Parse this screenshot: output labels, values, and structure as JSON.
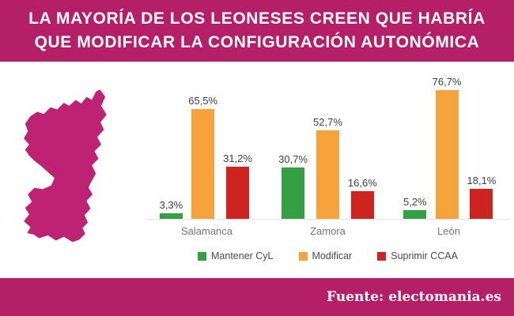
{
  "title": {
    "line1": "LA MAYORÍA DE LOS LEONESES CREEN QUE HABRÍA",
    "line2": "QUE MODIFICAR LA CONFIGURACIÓN AUTONÓMICA"
  },
  "map": {
    "icon": "leon-region-silhouette",
    "fill": "#BE2272"
  },
  "footer": {
    "source_label": "Fuente: electomania.es"
  },
  "colors": {
    "banner_background": "#B51F68",
    "page_background": "#FFFFFF",
    "axis_line": "#E3E3E3",
    "value_label_text": "#3D3D3D",
    "category_label_text": "#757575",
    "legend_text": "#4A4A4A"
  },
  "chart_data": {
    "type": "bar",
    "title": "",
    "xlabel": "",
    "ylabel": "",
    "categories": [
      "Salamanca",
      "Zamora",
      "León"
    ],
    "series": [
      {
        "name": "Mantener CyL",
        "color": "#34A043",
        "values": [
          3.3,
          30.7,
          5.2
        ],
        "value_labels": [
          "3,3%",
          "30,7%",
          "5,2%"
        ]
      },
      {
        "name": "Modificar",
        "color": "#F6A33C",
        "values": [
          65.5,
          52.7,
          76.7
        ],
        "value_labels": [
          "65,5%",
          "52,7%",
          "76,7%"
        ]
      },
      {
        "name": "Suprimir CCAA",
        "color": "#CE2420",
        "values": [
          31.2,
          16.6,
          18.1
        ],
        "value_labels": [
          "31,2%",
          "16,6%",
          "18,1%"
        ]
      }
    ],
    "ylim": [
      0,
      80
    ],
    "grid": false,
    "legend_position": "bottom",
    "value_labels_shown": true
  }
}
